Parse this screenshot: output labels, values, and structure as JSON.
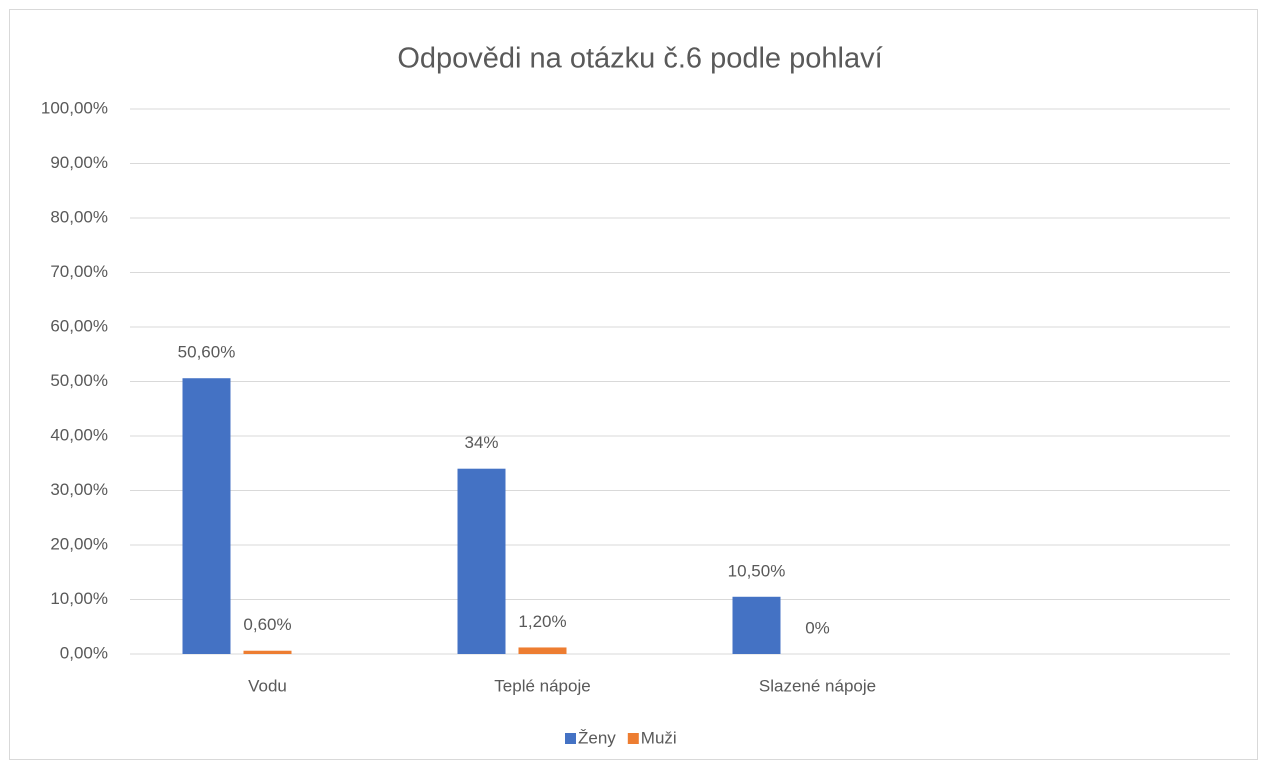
{
  "chart_data": {
    "type": "bar",
    "title": "Odpovědi na otázku č.6 podle pohlaví",
    "categories": [
      "Vodu",
      "Teplé nápoje",
      "Slazené nápoje",
      null
    ],
    "series": [
      {
        "name": "Ženy",
        "color": "#4472c4",
        "values": [
          50.6,
          34,
          10.5,
          null
        ],
        "value_labels": [
          "50,60%",
          "34%",
          "10,50%",
          null
        ]
      },
      {
        "name": "Muži",
        "color": "#ed7d31",
        "values": [
          0.6,
          1.2,
          0,
          null
        ],
        "value_labels": [
          "0,60%",
          "1,20%",
          "0%",
          null
        ]
      }
    ],
    "ylim": [
      0,
      100
    ],
    "yticks": [
      {
        "value": 0,
        "label": "0,00%"
      },
      {
        "value": 10,
        "label": "10,00%"
      },
      {
        "value": 20,
        "label": "20,00%"
      },
      {
        "value": 30,
        "label": "30,00%"
      },
      {
        "value": 40,
        "label": "40,00%"
      },
      {
        "value": 50,
        "label": "50,00%"
      },
      {
        "value": 60,
        "label": "60,00%"
      },
      {
        "value": 70,
        "label": "70,00%"
      },
      {
        "value": 80,
        "label": "80,00%"
      },
      {
        "value": 90,
        "label": "90,00%"
      },
      {
        "value": 100,
        "label": "100,00%"
      }
    ],
    "grid": true,
    "legend": "bottom"
  }
}
